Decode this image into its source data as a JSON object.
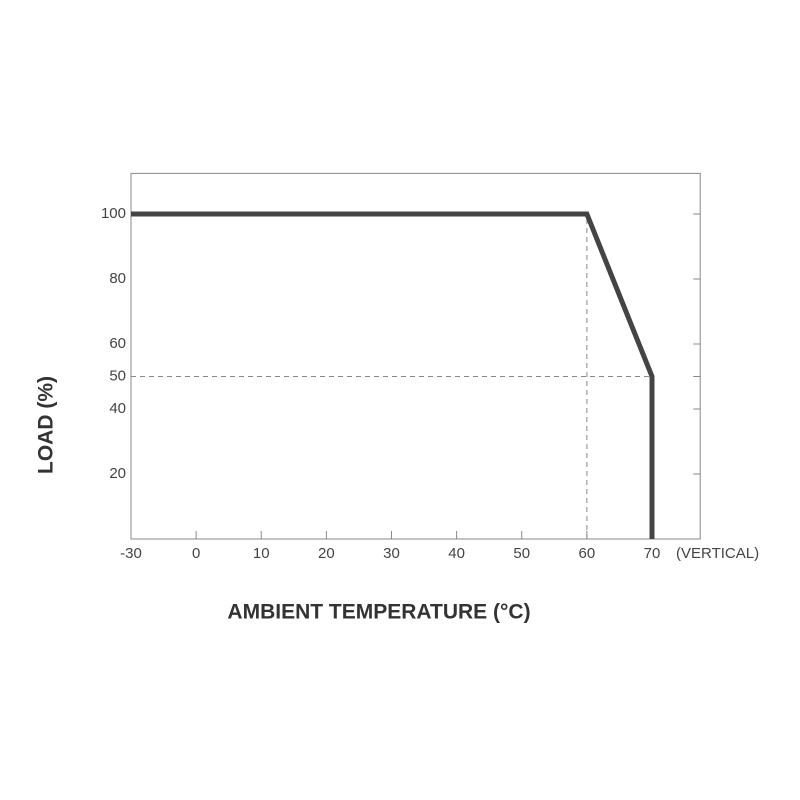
{
  "chart_data": {
    "type": "line",
    "x_label": "AMBIENT TEMPERATURE (°C)",
    "y_label": "LOAD (%)",
    "annotation": "(VERTICAL)",
    "xlim": [
      -30,
      77.4
    ],
    "xticks": [
      -30,
      0,
      10,
      20,
      30,
      40,
      50,
      60,
      70
    ],
    "ylim": [
      0,
      112.5
    ],
    "yticks": [
      20,
      40,
      50,
      60,
      80,
      100
    ],
    "series": [
      {
        "color": "#444444",
        "x": [
          -30,
          60,
          70,
          70
        ],
        "values": [
          100,
          100,
          50,
          0
        ]
      }
    ]
  }
}
